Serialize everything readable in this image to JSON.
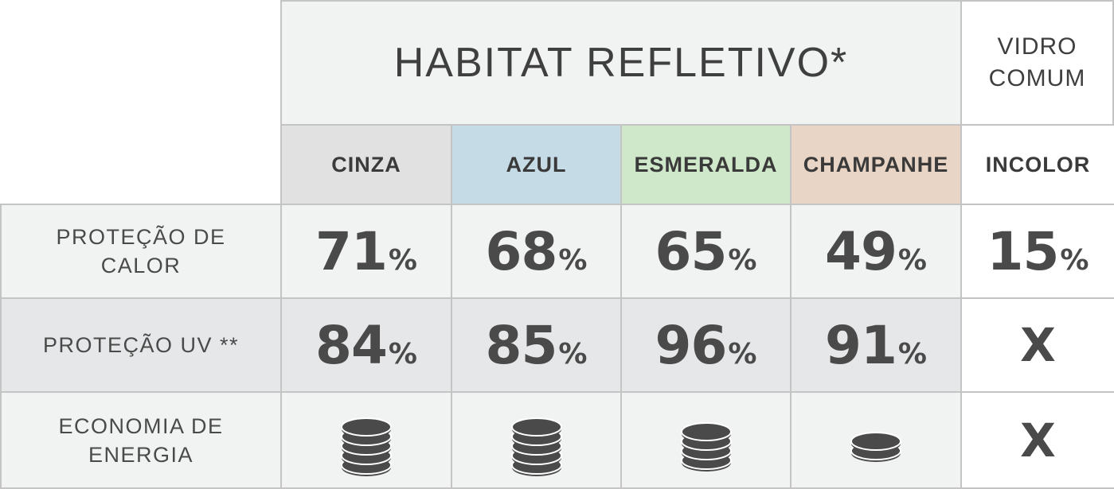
{
  "chart_data": {
    "type": "table",
    "group_header": "HABITAT REFLETIVO*",
    "comparison_header": "VIDRO\nCOMUM",
    "columns": [
      {
        "label": "CINZA",
        "color": "#e1e1e1"
      },
      {
        "label": "AZUL",
        "color": "#c5dbe6"
      },
      {
        "label": "ESMERALDA",
        "color": "#cfe8c9"
      },
      {
        "label": "CHAMPANHE",
        "color": "#e8d5c6"
      },
      {
        "label": "INCOLOR",
        "color": "#ffffff"
      }
    ],
    "rows": [
      {
        "label": "PROTEÇÃO DE\nCALOR",
        "cells": [
          {
            "value": "71",
            "unit": "%"
          },
          {
            "value": "68",
            "unit": "%"
          },
          {
            "value": "65",
            "unit": "%"
          },
          {
            "value": "49",
            "unit": "%"
          },
          {
            "value": "15",
            "unit": "%"
          }
        ]
      },
      {
        "label": "PROTEÇÃO UV **",
        "cells": [
          {
            "value": "84",
            "unit": "%"
          },
          {
            "value": "85",
            "unit": "%"
          },
          {
            "value": "96",
            "unit": "%"
          },
          {
            "value": "91",
            "unit": "%"
          },
          {
            "value": "X",
            "unit": ""
          }
        ]
      },
      {
        "label": "ECONOMIA DE\nENERGIA",
        "cells": [
          {
            "icon": "coin-stack-icon",
            "coins": 5
          },
          {
            "icon": "coin-stack-icon",
            "coins": 5
          },
          {
            "icon": "coin-stack-icon",
            "coins": 4
          },
          {
            "icon": "coin-stack-icon",
            "coins": 2
          },
          {
            "value": "X",
            "unit": ""
          }
        ]
      }
    ],
    "icon_color": "#4a4a4a",
    "text_color": "#444444"
  }
}
